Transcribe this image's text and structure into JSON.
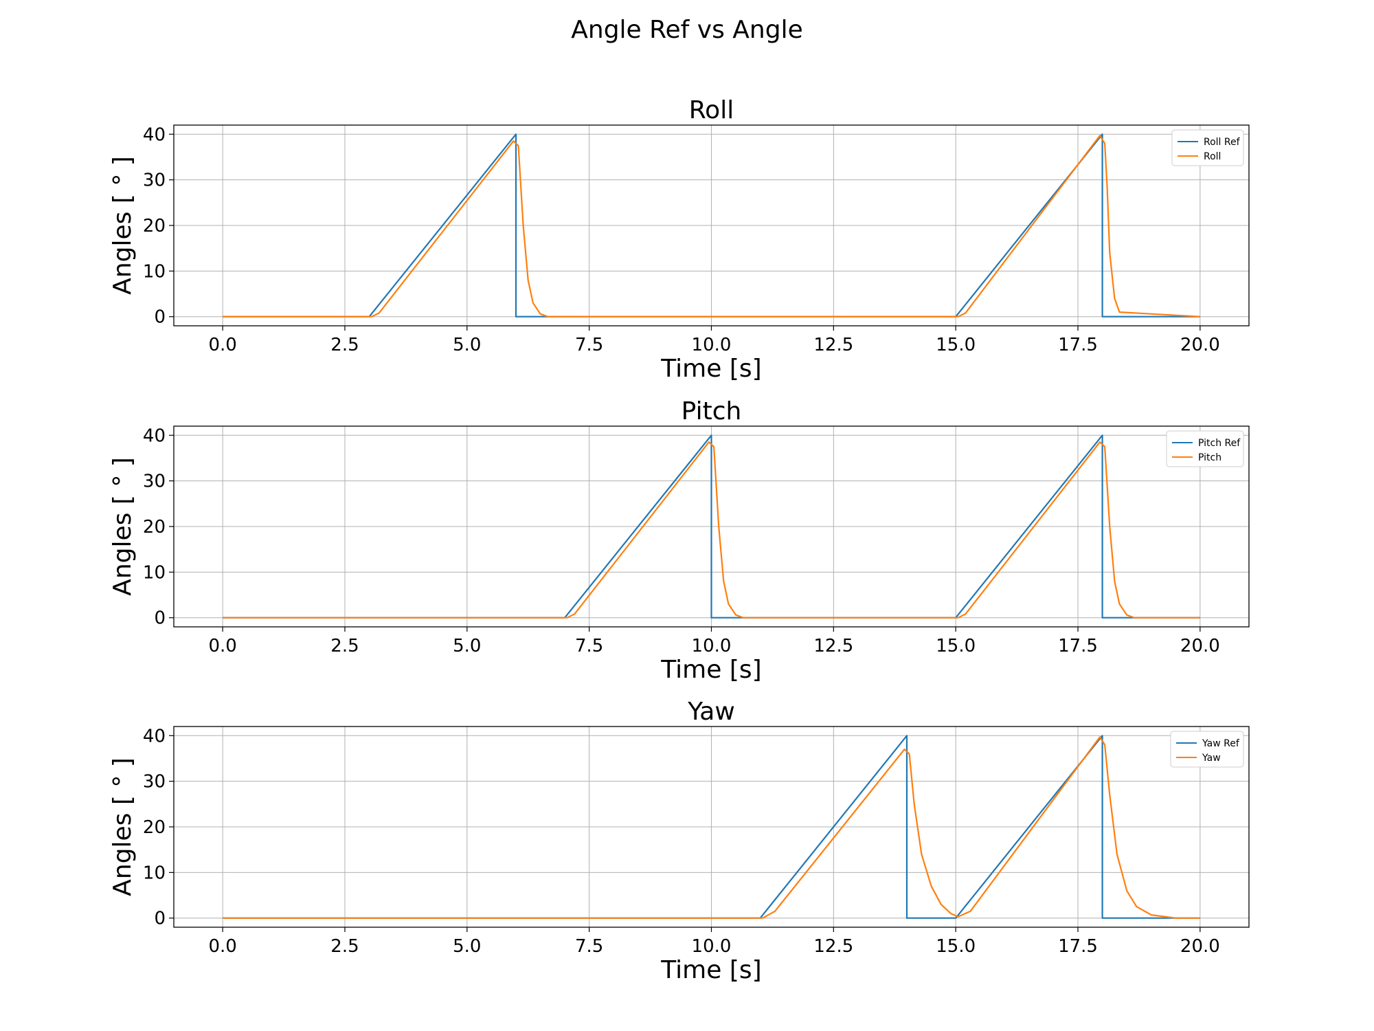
{
  "figure_title": "Angle Ref vs Angle",
  "colors": {
    "ref": "#1f77b4",
    "actual": "#ff7f0e",
    "grid": "#b0b0b0"
  },
  "chart_data": [
    {
      "type": "line",
      "title": "Roll",
      "xlabel": "Time [s]",
      "ylabel": "Angles [ ° ]",
      "xlim": [
        -1.0,
        21.0
      ],
      "ylim": [
        -2,
        42
      ],
      "xticks": [
        "0.0",
        "2.5",
        "5.0",
        "7.5",
        "10.0",
        "12.5",
        "15.0",
        "17.5",
        "20.0"
      ],
      "yticks": [
        "0",
        "10",
        "20",
        "30",
        "40"
      ],
      "grid": true,
      "legend_position": "top-right",
      "series": [
        {
          "name": "Roll Ref",
          "x": [
            0,
            3,
            6,
            6,
            15,
            18,
            18,
            20
          ],
          "y": [
            0,
            0,
            40,
            0,
            0,
            40,
            0,
            0
          ]
        },
        {
          "name": "Roll",
          "x": [
            0,
            3.05,
            3.2,
            5.95,
            6.05,
            6.15,
            6.25,
            6.35,
            6.5,
            6.65,
            15.05,
            15.2,
            17.95,
            18.05,
            18.1,
            18.15,
            18.25,
            18.35,
            20
          ],
          "y": [
            0,
            0,
            0.8,
            38.5,
            37.5,
            20,
            8,
            3,
            0.6,
            0,
            0,
            0.8,
            39.7,
            38,
            28,
            14,
            4,
            1,
            0
          ]
        }
      ]
    },
    {
      "type": "line",
      "title": "Pitch",
      "xlabel": "Time [s]",
      "ylabel": "Angles [ ° ]",
      "xlim": [
        -1.0,
        21.0
      ],
      "ylim": [
        -2,
        42
      ],
      "xticks": [
        "0.0",
        "2.5",
        "5.0",
        "7.5",
        "10.0",
        "12.5",
        "15.0",
        "17.5",
        "20.0"
      ],
      "yticks": [
        "0",
        "10",
        "20",
        "30",
        "40"
      ],
      "grid": true,
      "legend_position": "top-right",
      "series": [
        {
          "name": "Pitch Ref",
          "x": [
            0,
            7,
            10,
            10,
            15,
            18,
            18,
            20
          ],
          "y": [
            0,
            0,
            40,
            0,
            0,
            40,
            0,
            0
          ]
        },
        {
          "name": "Pitch",
          "x": [
            0,
            7.05,
            7.2,
            9.95,
            10.05,
            10.15,
            10.25,
            10.35,
            10.5,
            10.65,
            15.05,
            15.2,
            17.95,
            18.05,
            18.15,
            18.25,
            18.35,
            18.5,
            18.65,
            20
          ],
          "y": [
            0,
            0,
            0.8,
            38.5,
            37.5,
            20,
            8,
            3,
            0.6,
            0,
            0,
            0.8,
            38.5,
            37.5,
            20,
            8,
            3,
            0.6,
            0,
            0
          ]
        }
      ]
    },
    {
      "type": "line",
      "title": "Yaw",
      "xlabel": "Time [s]",
      "ylabel": "Angles [ ° ]",
      "xlim": [
        -1.0,
        21.0
      ],
      "ylim": [
        -2,
        42
      ],
      "xticks": [
        "0.0",
        "2.5",
        "5.0",
        "7.5",
        "10.0",
        "12.5",
        "15.0",
        "17.5",
        "20.0"
      ],
      "yticks": [
        "0",
        "10",
        "20",
        "30",
        "40"
      ],
      "grid": true,
      "legend_position": "top-right",
      "series": [
        {
          "name": "Yaw Ref",
          "x": [
            0,
            11,
            14,
            14,
            15,
            18,
            18,
            20
          ],
          "y": [
            0,
            0,
            40,
            0,
            0,
            40,
            0,
            0
          ]
        },
        {
          "name": "Yaw",
          "x": [
            0,
            11.05,
            11.3,
            13.95,
            14.05,
            14.15,
            14.3,
            14.5,
            14.7,
            14.9,
            15.05,
            15.3,
            17.95,
            18.05,
            18.15,
            18.3,
            18.5,
            18.7,
            19.0,
            19.5,
            20
          ],
          "y": [
            0,
            0,
            1.5,
            37,
            36,
            25,
            14,
            7,
            3,
            1,
            0.3,
            1.5,
            39.7,
            38,
            27,
            14,
            6,
            2.5,
            0.7,
            0,
            0
          ]
        }
      ]
    }
  ]
}
